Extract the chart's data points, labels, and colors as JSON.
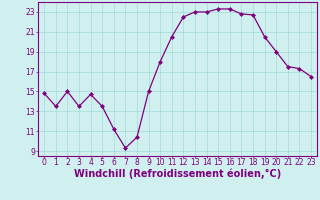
{
  "x": [
    0,
    1,
    2,
    3,
    4,
    5,
    6,
    7,
    8,
    9,
    10,
    11,
    12,
    13,
    14,
    15,
    16,
    17,
    18,
    19,
    20,
    21,
    22,
    23
  ],
  "y": [
    14.8,
    13.5,
    15.0,
    13.5,
    14.7,
    13.5,
    11.2,
    9.3,
    10.4,
    15.0,
    18.0,
    20.5,
    22.5,
    23.0,
    23.0,
    23.3,
    23.3,
    22.8,
    22.7,
    20.5,
    19.0,
    17.5,
    17.3,
    16.5
  ],
  "line_color": "#800080",
  "marker": "D",
  "marker_size": 2.0,
  "bg_color": "#cff0ee",
  "grid_color": "#aadddd",
  "xlabel": "Windchill (Refroidissement éolien,°C)",
  "xlabel_color": "#800080",
  "xlim": [
    -0.5,
    23.5
  ],
  "ylim": [
    8.5,
    24.0
  ],
  "yticks": [
    9,
    11,
    13,
    15,
    17,
    19,
    21,
    23
  ],
  "xticks": [
    0,
    1,
    2,
    3,
    4,
    5,
    6,
    7,
    8,
    9,
    10,
    11,
    12,
    13,
    14,
    15,
    16,
    17,
    18,
    19,
    20,
    21,
    22,
    23
  ],
  "tick_color": "#800080",
  "tick_fontsize": 5.5,
  "xlabel_fontsize": 7.0,
  "spine_color": "#800080",
  "linewidth": 0.9
}
